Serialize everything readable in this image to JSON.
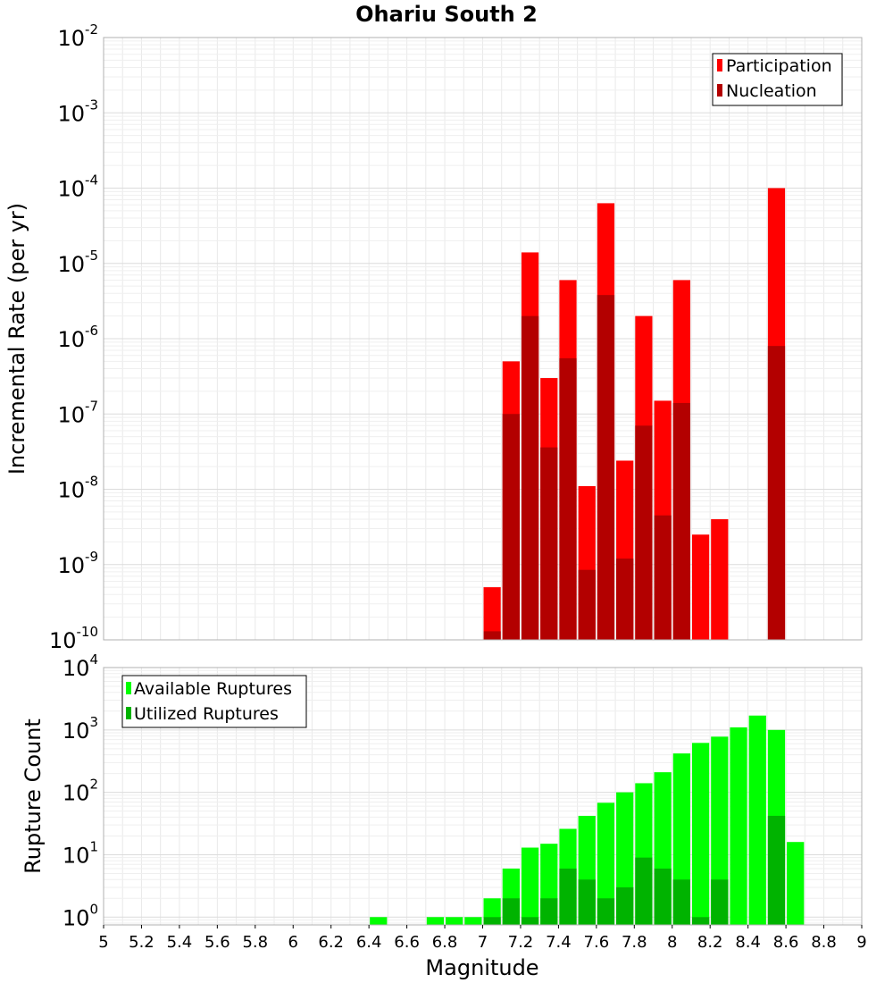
{
  "chart_data": [
    {
      "type": "bar",
      "title": "Ohariu South 2",
      "xlabel": "",
      "ylabel": "Incremental Rate (per yr)",
      "y_scale": "log",
      "ylim": [
        1e-10,
        0.01
      ],
      "xlim": [
        5,
        9
      ],
      "y_ticks": [
        {
          "base": "10",
          "exp": "-10"
        },
        {
          "base": "10",
          "exp": "-9"
        },
        {
          "base": "10",
          "exp": "-8"
        },
        {
          "base": "10",
          "exp": "-7"
        },
        {
          "base": "10",
          "exp": "-6"
        },
        {
          "base": "10",
          "exp": "-5"
        },
        {
          "base": "10",
          "exp": "-4"
        },
        {
          "base": "10",
          "exp": "-3"
        },
        {
          "base": "10",
          "exp": "-2"
        }
      ],
      "grid": true,
      "legend_position": "top-right",
      "series": [
        {
          "name": "Participation",
          "color": "#ff0000",
          "x": [
            7.05,
            7.15,
            7.25,
            7.35,
            7.45,
            7.55,
            7.65,
            7.75,
            7.85,
            7.95,
            8.05,
            8.15,
            8.25,
            8.55
          ],
          "values": [
            5e-10,
            5e-07,
            1.4e-05,
            3e-07,
            6e-06,
            1.1e-08,
            6.3e-05,
            2.4e-08,
            2e-06,
            1.5e-07,
            6e-06,
            2.5e-09,
            4e-09,
            0.0001
          ]
        },
        {
          "name": "Nucleation",
          "color": "#b30000",
          "x": [
            7.05,
            7.15,
            7.25,
            7.35,
            7.45,
            7.55,
            7.65,
            7.75,
            7.85,
            7.95,
            8.05,
            8.55
          ],
          "values": [
            1.3e-10,
            1e-07,
            2e-06,
            3.6e-08,
            5.5e-07,
            8.5e-10,
            3.8e-06,
            1.2e-09,
            7e-08,
            4.5e-09,
            1.4e-07,
            8e-07
          ]
        }
      ]
    },
    {
      "type": "bar",
      "title": "",
      "xlabel": "Magnitude",
      "ylabel": "Rupture Count",
      "y_scale": "log",
      "ylim": [
        0.75,
        10000
      ],
      "xlim": [
        5,
        9
      ],
      "x_ticks": [
        "5",
        "5.2",
        "5.4",
        "5.6",
        "5.8",
        "6",
        "6.2",
        "6.4",
        "6.6",
        "6.8",
        "7",
        "7.2",
        "7.4",
        "7.6",
        "7.8",
        "8",
        "8.2",
        "8.4",
        "8.6",
        "8.8",
        "9"
      ],
      "y_ticks": [
        {
          "base": "10",
          "exp": "0"
        },
        {
          "base": "10",
          "exp": "1"
        },
        {
          "base": "10",
          "exp": "2"
        },
        {
          "base": "10",
          "exp": "3"
        },
        {
          "base": "10",
          "exp": "4"
        }
      ],
      "grid": true,
      "legend_position": "top-left",
      "series": [
        {
          "name": "Available Ruptures",
          "color": "#00ff00",
          "x": [
            6.45,
            6.75,
            6.85,
            6.95,
            7.05,
            7.15,
            7.25,
            7.35,
            7.45,
            7.55,
            7.65,
            7.75,
            7.85,
            7.95,
            8.05,
            8.15,
            8.25,
            8.35,
            8.45,
            8.55,
            8.65
          ],
          "values": [
            1,
            1,
            1,
            1,
            2,
            6,
            13,
            15,
            26,
            42,
            68,
            100,
            140,
            210,
            420,
            620,
            780,
            1100,
            1700,
            1000,
            16
          ]
        },
        {
          "name": "Utilized Ruptures",
          "color": "#00b300",
          "x": [
            7.05,
            7.15,
            7.25,
            7.35,
            7.45,
            7.55,
            7.65,
            7.75,
            7.85,
            7.95,
            8.05,
            8.15,
            8.25,
            8.55
          ],
          "values": [
            1,
            2,
            1,
            2,
            6,
            4,
            2,
            3,
            9,
            6,
            4,
            1,
            4,
            42
          ]
        }
      ]
    }
  ]
}
